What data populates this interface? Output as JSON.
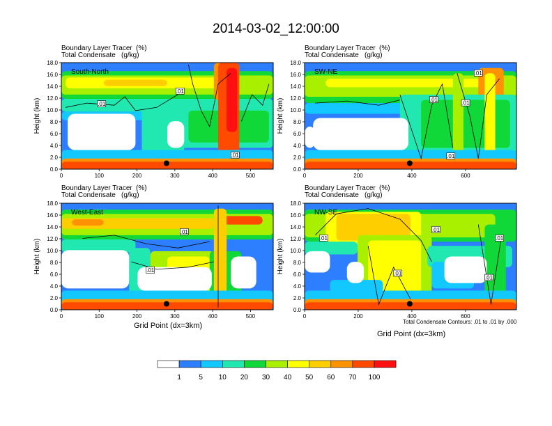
{
  "title": "2014-03-02_12:00:00",
  "panel_header": {
    "line1_left": "Boundary Layer Tracer",
    "line1_right": "(%)",
    "line2_left": "Total Condensate",
    "line2_right": "(g/kg)"
  },
  "y_axis_label": "Height (km)",
  "x_axis_label": "Grid Point (dx=3km)",
  "contour_note": "Total Condensate Contours: .01 to .01 by .000",
  "contour_tag": ".01",
  "colors": [
    "#ffffff",
    "#2e7fff",
    "#12c8ff",
    "#20e8b0",
    "#10d838",
    "#a8f000",
    "#ffff00",
    "#ffce00",
    "#ff9200",
    "#ff4a00",
    "#ff1010"
  ],
  "colorbar": {
    "boundaries": [
      1,
      5,
      10,
      20,
      30,
      40,
      50,
      60,
      70,
      100
    ],
    "labels": [
      "1",
      "5",
      "10",
      "20",
      "30",
      "40",
      "50",
      "60",
      "70",
      "100"
    ]
  },
  "chart_data": [
    {
      "type": "heatmap",
      "panel": "South-North",
      "label": "South-North",
      "xlim": [
        0,
        560
      ],
      "x_ticks": [
        "0",
        "100",
        "200",
        "300",
        "400",
        "500"
      ],
      "ylim": [
        0,
        18
      ],
      "y_ticks": [
        "0.0",
        "2.0",
        "4.0",
        "6.0",
        "8.0",
        "10.0",
        "12.0",
        "14.0",
        "16.0",
        "18.0"
      ],
      "marker": {
        "x": 278,
        "y": 1.0
      }
    },
    {
      "type": "heatmap",
      "panel": "SW-NE",
      "label": "SW-NE",
      "xlim": [
        0,
        790
      ],
      "x_ticks": [
        "0",
        "200",
        "400",
        "600"
      ],
      "ylim": [
        0,
        18
      ],
      "y_ticks": [
        "0.0",
        "2.0",
        "4.0",
        "6.0",
        "8.0",
        "10.0",
        "12.0",
        "14.0",
        "16.0",
        "18.0"
      ],
      "marker": {
        "x": 392,
        "y": 1.0
      }
    },
    {
      "type": "heatmap",
      "panel": "West-East",
      "label": "West-East",
      "xlim": [
        0,
        560
      ],
      "x_ticks": [
        "0",
        "100",
        "200",
        "300",
        "400",
        "500"
      ],
      "ylim": [
        0,
        18
      ],
      "y_ticks": [
        "0.0",
        "2.0",
        "4.0",
        "6.0",
        "8.0",
        "10.0",
        "12.0",
        "14.0",
        "16.0",
        "18.0"
      ],
      "marker": {
        "x": 278,
        "y": 1.0
      }
    },
    {
      "type": "heatmap",
      "panel": "NW-SE",
      "label": "NW-SE",
      "xlim": [
        0,
        790
      ],
      "x_ticks": [
        "0",
        "200",
        "400",
        "600"
      ],
      "ylim": [
        0,
        18
      ],
      "y_ticks": [
        "0.0",
        "2.0",
        "4.0",
        "6.0",
        "8.0",
        "10.0",
        "12.0",
        "14.0",
        "16.0",
        "18.0"
      ],
      "marker": {
        "x": 392,
        "y": 1.0
      }
    }
  ]
}
